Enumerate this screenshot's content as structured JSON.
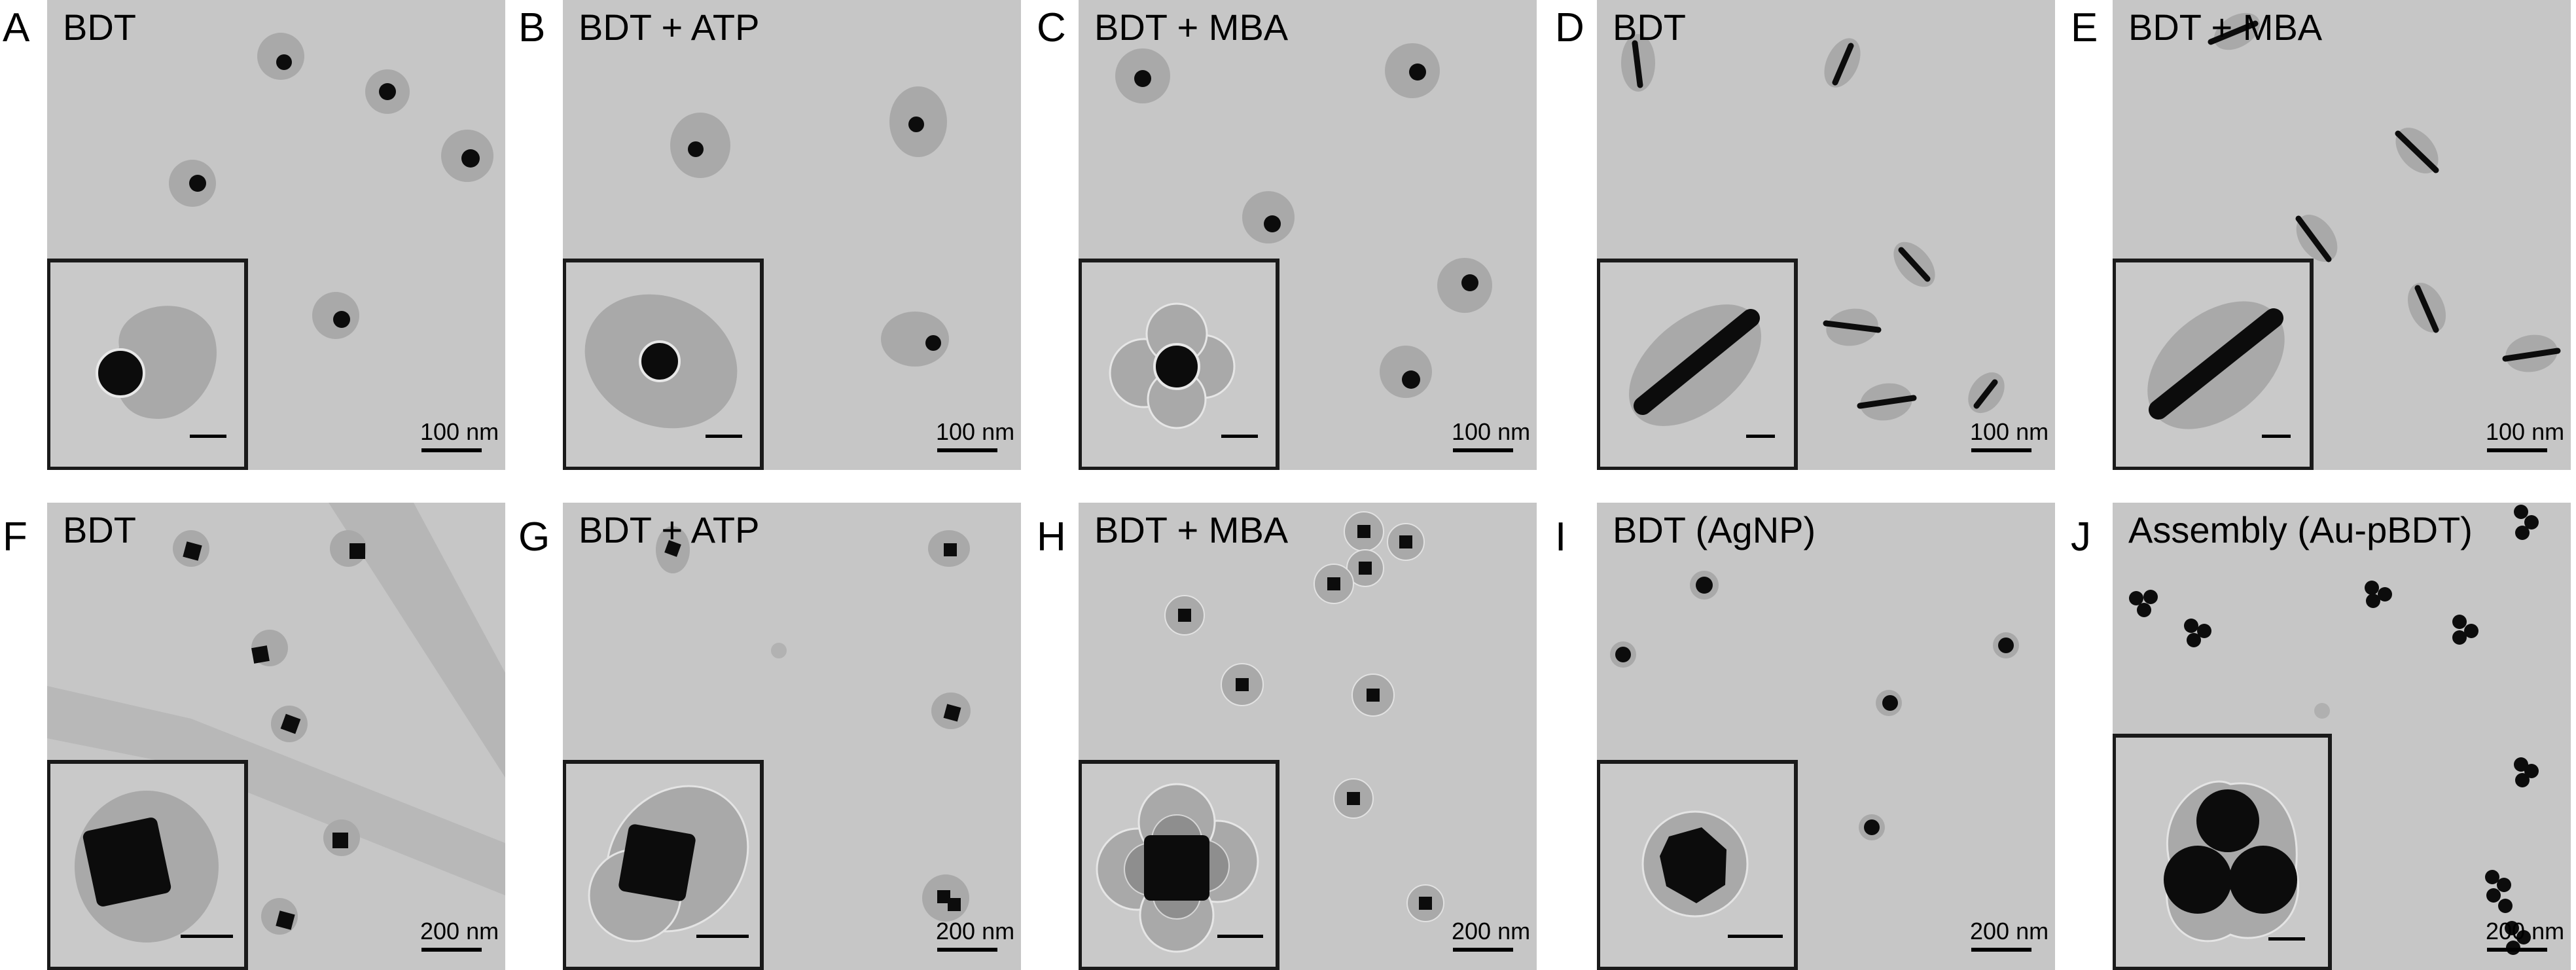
{
  "panels": [
    {
      "letter": "A",
      "label": "BDT",
      "scale": "100 nm",
      "type": "sphere"
    },
    {
      "letter": "B",
      "label": "BDT + ATP",
      "scale": "100 nm",
      "type": "sphere-halo"
    },
    {
      "letter": "C",
      "label": "BDT + MBA",
      "scale": "100 nm",
      "type": "sphere-lobed"
    },
    {
      "letter": "D",
      "label": "BDT",
      "scale": "100 nm",
      "type": "rod"
    },
    {
      "letter": "E",
      "label": "BDT + MBA",
      "scale": "100 nm",
      "type": "rod"
    },
    {
      "letter": "F",
      "label": "BDT",
      "scale": "200 nm",
      "type": "cube"
    },
    {
      "letter": "G",
      "label": "BDT + ATP",
      "scale": "200 nm",
      "type": "cube-halo"
    },
    {
      "letter": "H",
      "label": "BDT + MBA",
      "scale": "200 nm",
      "type": "cube-lobed"
    },
    {
      "letter": "I",
      "label": "BDT (AgNP)",
      "scale": "200 nm",
      "type": "sphere-small"
    },
    {
      "letter": "J",
      "label": "Assembly (Au-pBDT)",
      "scale": "200 nm",
      "type": "trimer"
    }
  ],
  "colors": {
    "background": "#c6c6c6",
    "shell": "#a8a8a8",
    "core": "#0c0c0c",
    "inset_border": "#1a1a1a"
  }
}
